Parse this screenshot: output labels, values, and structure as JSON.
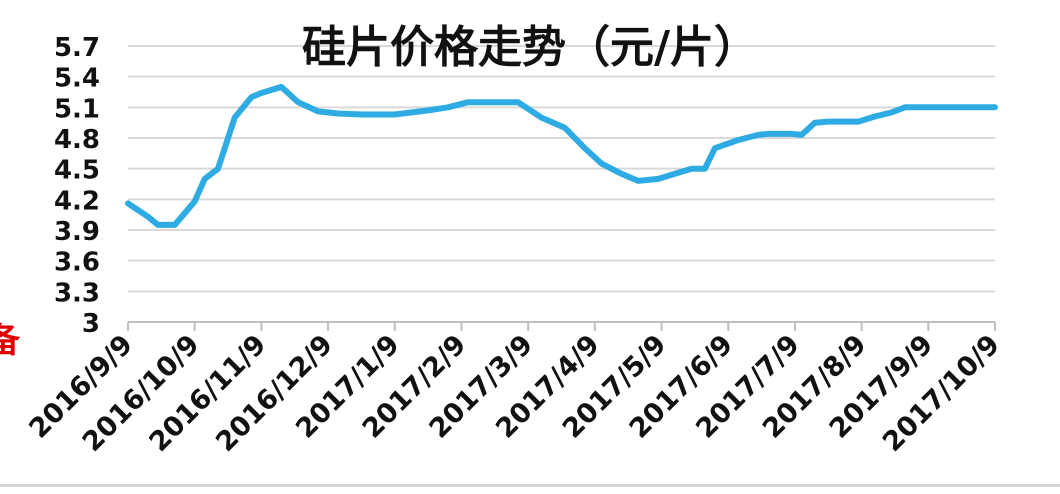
{
  "chart_data": {
    "type": "line",
    "title": "硅片价格走势（元/片）",
    "xlabel": "",
    "ylabel": "",
    "ylim": [
      3,
      5.7
    ],
    "yticks": [
      "5.7",
      "5.4",
      "5.1",
      "4.8",
      "4.5",
      "4.2",
      "3.9",
      "3.6",
      "3.3",
      "3"
    ],
    "xticks": [
      "2016/9/9",
      "2016/10/9",
      "2016/11/9",
      "2016/12/9",
      "2017/1/9",
      "2017/2/9",
      "2017/3/9",
      "2017/4/9",
      "2017/5/9",
      "2017/6/9",
      "2017/7/9",
      "2017/8/9",
      "2017/9/9",
      "2017/10/9"
    ],
    "grid": true,
    "line_color": "#2eabe2",
    "side_fragment": "备",
    "side_fragment_color": "#e00000",
    "series": [
      {
        "name": "",
        "points": [
          [
            0.0,
            4.16
          ],
          [
            0.3,
            4.03
          ],
          [
            0.45,
            3.95
          ],
          [
            0.7,
            3.95
          ],
          [
            1.0,
            4.18
          ],
          [
            1.15,
            4.4
          ],
          [
            1.35,
            4.5
          ],
          [
            1.6,
            5.0
          ],
          [
            1.85,
            5.2
          ],
          [
            2.0,
            5.24
          ],
          [
            2.3,
            5.3
          ],
          [
            2.55,
            5.15
          ],
          [
            2.85,
            5.06
          ],
          [
            3.15,
            5.04
          ],
          [
            3.5,
            5.03
          ],
          [
            4.0,
            5.03
          ],
          [
            4.5,
            5.07
          ],
          [
            4.8,
            5.1
          ],
          [
            5.1,
            5.15
          ],
          [
            5.5,
            5.15
          ],
          [
            5.85,
            5.15
          ],
          [
            6.2,
            5.0
          ],
          [
            6.55,
            4.9
          ],
          [
            6.85,
            4.7
          ],
          [
            7.1,
            4.55
          ],
          [
            7.4,
            4.45
          ],
          [
            7.65,
            4.38
          ],
          [
            7.95,
            4.4
          ],
          [
            8.3,
            4.47
          ],
          [
            8.45,
            4.5
          ],
          [
            8.65,
            4.5
          ],
          [
            8.8,
            4.7
          ],
          [
            9.15,
            4.78
          ],
          [
            9.45,
            4.83
          ],
          [
            9.6,
            4.84
          ],
          [
            9.95,
            4.84
          ],
          [
            10.1,
            4.83
          ],
          [
            10.3,
            4.95
          ],
          [
            10.5,
            4.96
          ],
          [
            10.95,
            4.96
          ],
          [
            11.2,
            5.01
          ],
          [
            11.45,
            5.05
          ],
          [
            11.65,
            5.1
          ],
          [
            12.0,
            5.1
          ],
          [
            13.0,
            5.1
          ]
        ]
      }
    ]
  }
}
